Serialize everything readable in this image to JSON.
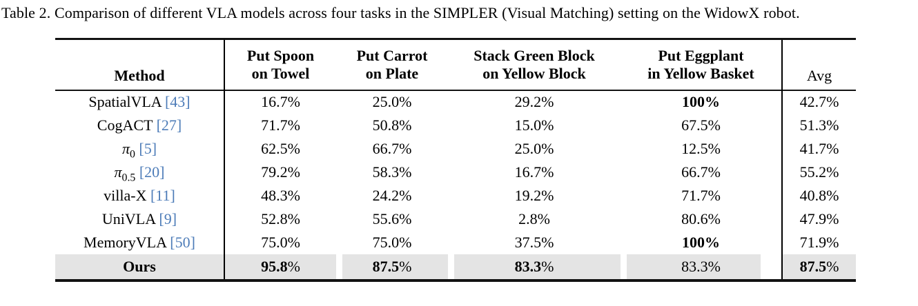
{
  "caption": "Table 2. Comparison of different VLA models across four tasks in the SIMPLER (Visual Matching) setting on the WidowX robot.",
  "colors": {
    "citation_blue": "#4d7cb8",
    "highlight_row_bg": "#e4e4e4",
    "rule_black": "#121212"
  },
  "table": {
    "columns": [
      {
        "label": "Method"
      },
      {
        "label": "Put Spoon\non Towel"
      },
      {
        "label": "Put Carrot\non Plate"
      },
      {
        "label": "Stack Green Block\non Yellow Block"
      },
      {
        "label": "Put Eggplant\nin Yellow Basket"
      },
      {
        "label": "Avg"
      }
    ],
    "rows": [
      {
        "method": {
          "text": "SpatialVLA",
          "sub": "",
          "italic": false,
          "bold": false,
          "cite": "[43]"
        },
        "highlight": false,
        "values": [
          {
            "num": "16.7",
            "suffix": "%",
            "num_bold": false,
            "suffix_bold": false
          },
          {
            "num": "25.0",
            "suffix": "%",
            "num_bold": false,
            "suffix_bold": false
          },
          {
            "num": "29.2",
            "suffix": "%",
            "num_bold": false,
            "suffix_bold": false
          },
          {
            "num": "100",
            "suffix": "%",
            "num_bold": true,
            "suffix_bold": true
          },
          {
            "num": "42.7",
            "suffix": "%",
            "num_bold": false,
            "suffix_bold": false
          }
        ]
      },
      {
        "method": {
          "text": "CogACT",
          "sub": "",
          "italic": false,
          "bold": false,
          "cite": "[27]"
        },
        "highlight": false,
        "values": [
          {
            "num": "71.7",
            "suffix": "%",
            "num_bold": false,
            "suffix_bold": false
          },
          {
            "num": "50.8",
            "suffix": "%",
            "num_bold": false,
            "suffix_bold": false
          },
          {
            "num": "15.0",
            "suffix": "%",
            "num_bold": false,
            "suffix_bold": false
          },
          {
            "num": "67.5",
            "suffix": "%",
            "num_bold": false,
            "suffix_bold": false
          },
          {
            "num": "51.3",
            "suffix": "%",
            "num_bold": false,
            "suffix_bold": false
          }
        ]
      },
      {
        "method": {
          "text": "π",
          "sub": "0",
          "italic": true,
          "bold": false,
          "cite": "[5]"
        },
        "highlight": false,
        "values": [
          {
            "num": "62.5",
            "suffix": "%",
            "num_bold": false,
            "suffix_bold": false
          },
          {
            "num": "66.7",
            "suffix": "%",
            "num_bold": false,
            "suffix_bold": false
          },
          {
            "num": "25.0",
            "suffix": "%",
            "num_bold": false,
            "suffix_bold": false
          },
          {
            "num": "12.5",
            "suffix": "%",
            "num_bold": false,
            "suffix_bold": false
          },
          {
            "num": "41.7",
            "suffix": "%",
            "num_bold": false,
            "suffix_bold": false
          }
        ]
      },
      {
        "method": {
          "text": "π",
          "sub": "0.5",
          "italic": true,
          "bold": false,
          "cite": "[20]"
        },
        "highlight": false,
        "values": [
          {
            "num": "79.2",
            "suffix": "%",
            "num_bold": false,
            "suffix_bold": false
          },
          {
            "num": "58.3",
            "suffix": "%",
            "num_bold": false,
            "suffix_bold": false
          },
          {
            "num": "16.7",
            "suffix": "%",
            "num_bold": false,
            "suffix_bold": false
          },
          {
            "num": "66.7",
            "suffix": "%",
            "num_bold": false,
            "suffix_bold": false
          },
          {
            "num": "55.2",
            "suffix": "%",
            "num_bold": false,
            "suffix_bold": false
          }
        ]
      },
      {
        "method": {
          "text": "villa-X",
          "sub": "",
          "italic": false,
          "bold": false,
          "cite": "[11]"
        },
        "highlight": false,
        "values": [
          {
            "num": "48.3",
            "suffix": "%",
            "num_bold": false,
            "suffix_bold": false
          },
          {
            "num": "24.2",
            "suffix": "%",
            "num_bold": false,
            "suffix_bold": false
          },
          {
            "num": "19.2",
            "suffix": "%",
            "num_bold": false,
            "suffix_bold": false
          },
          {
            "num": "71.7",
            "suffix": "%",
            "num_bold": false,
            "suffix_bold": false
          },
          {
            "num": "40.8",
            "suffix": "%",
            "num_bold": false,
            "suffix_bold": false
          }
        ]
      },
      {
        "method": {
          "text": "UniVLA",
          "sub": "",
          "italic": false,
          "bold": false,
          "cite": "[9]"
        },
        "highlight": false,
        "values": [
          {
            "num": "52.8",
            "suffix": "%",
            "num_bold": false,
            "suffix_bold": false
          },
          {
            "num": "55.6",
            "suffix": "%",
            "num_bold": false,
            "suffix_bold": false
          },
          {
            "num": "2.8",
            "suffix": "%",
            "num_bold": false,
            "suffix_bold": false
          },
          {
            "num": "80.6",
            "suffix": "%",
            "num_bold": false,
            "suffix_bold": false
          },
          {
            "num": "47.9",
            "suffix": "%",
            "num_bold": false,
            "suffix_bold": false
          }
        ]
      },
      {
        "method": {
          "text": "MemoryVLA",
          "sub": "",
          "italic": false,
          "bold": false,
          "cite": "[50]"
        },
        "highlight": false,
        "values": [
          {
            "num": "75.0",
            "suffix": "%",
            "num_bold": false,
            "suffix_bold": false
          },
          {
            "num": "75.0",
            "suffix": "%",
            "num_bold": false,
            "suffix_bold": false
          },
          {
            "num": "37.5",
            "suffix": "%",
            "num_bold": false,
            "suffix_bold": false
          },
          {
            "num": "100",
            "suffix": "%",
            "num_bold": true,
            "suffix_bold": true
          },
          {
            "num": "71.9",
            "suffix": "%",
            "num_bold": false,
            "suffix_bold": false
          }
        ]
      },
      {
        "method": {
          "text": "Ours",
          "sub": "",
          "italic": false,
          "bold": true,
          "cite": ""
        },
        "highlight": true,
        "values": [
          {
            "num": "95.8",
            "suffix": "%",
            "num_bold": true,
            "suffix_bold": false
          },
          {
            "num": "87.5",
            "suffix": "%",
            "num_bold": true,
            "suffix_bold": false
          },
          {
            "num": "83.3",
            "suffix": "%",
            "num_bold": true,
            "suffix_bold": false
          },
          {
            "num": "83.3",
            "suffix": "%",
            "num_bold": false,
            "suffix_bold": false
          },
          {
            "num": "87.5",
            "suffix": "%",
            "num_bold": true,
            "suffix_bold": false
          }
        ]
      }
    ]
  }
}
